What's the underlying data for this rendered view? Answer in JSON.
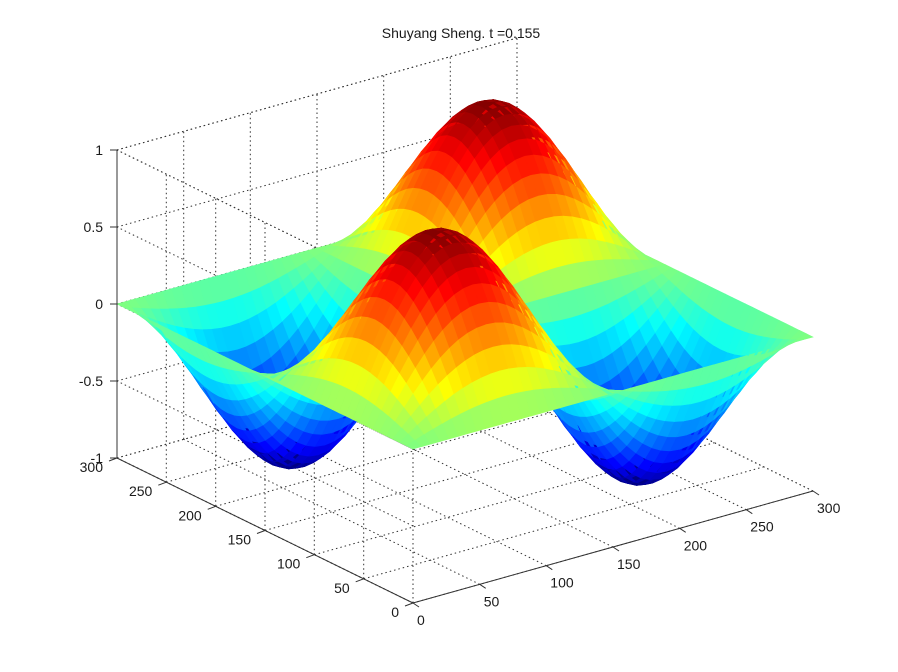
{
  "chart_data": {
    "type": "surface",
    "title": "Shuyang Sheng. t =0.155",
    "function": "z = sin(2*pi*x/300) * sin(2*pi*y/300)",
    "x_range": [
      0,
      300
    ],
    "y_range": [
      0,
      300
    ],
    "z_range": [
      -1,
      1
    ],
    "x_ticks": [
      0,
      50,
      100,
      150,
      200,
      250,
      300
    ],
    "y_ticks": [
      0,
      50,
      100,
      150,
      200,
      250,
      300
    ],
    "z_ticks": [
      -1,
      -0.5,
      0,
      0.5,
      1
    ],
    "x_tick_labels": [
      "0",
      "50",
      "100",
      "150",
      "200",
      "250",
      "300"
    ],
    "y_tick_labels": [
      "0",
      "50",
      "100",
      "150",
      "200",
      "250",
      "300"
    ],
    "z_tick_labels": [
      "-1",
      "-0.5",
      "0",
      "0.5",
      "1"
    ],
    "peaks": [
      {
        "x": 75,
        "y": 75,
        "z": 1
      },
      {
        "x": 225,
        "y": 225,
        "z": 1
      }
    ],
    "troughs": [
      {
        "x": 225,
        "y": 75,
        "z": -1
      },
      {
        "x": 75,
        "y": 225,
        "z": -1
      }
    ],
    "colormap": "jet",
    "grid": true,
    "legend": "none"
  }
}
